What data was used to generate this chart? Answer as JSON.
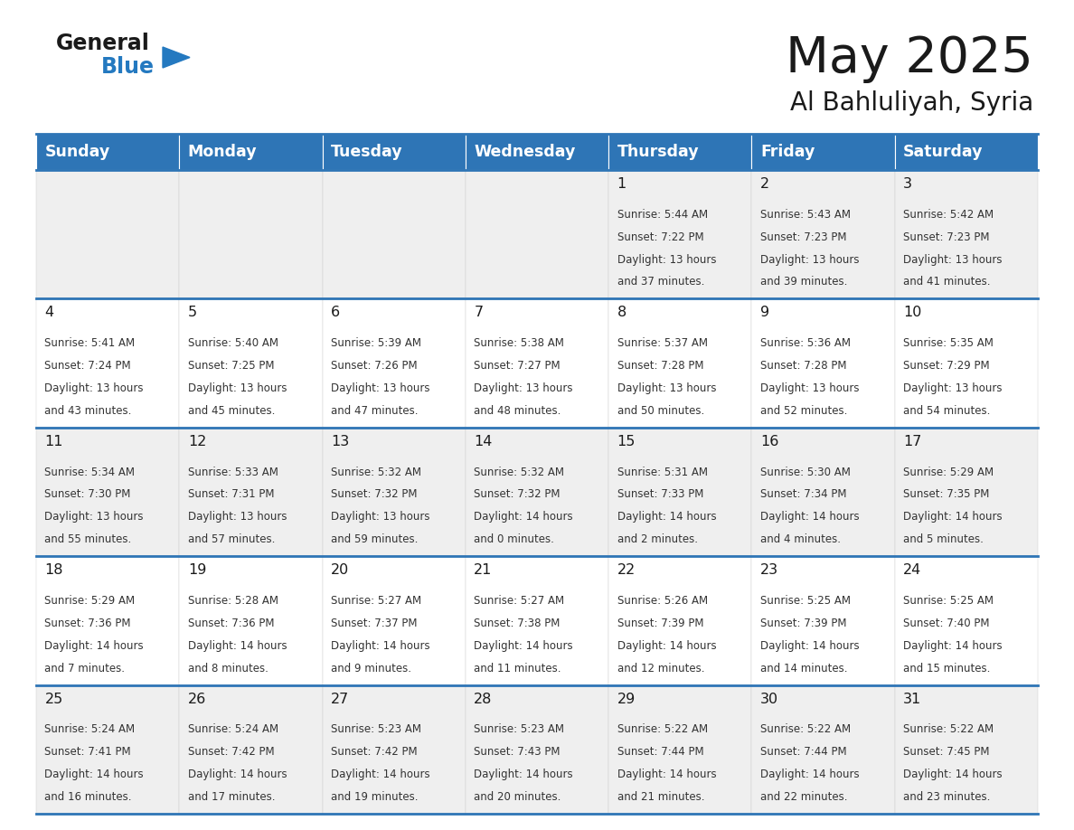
{
  "title": "May 2025",
  "subtitle": "Al Bahluliyah, Syria",
  "header_bg": "#2E75B6",
  "header_text_color": "#FFFFFF",
  "weekdays": [
    "Sunday",
    "Monday",
    "Tuesday",
    "Wednesday",
    "Thursday",
    "Friday",
    "Saturday"
  ],
  "row_bg_odd": "#EFEFEF",
  "row_bg_even": "#FFFFFF",
  "separator_color": "#2E75B6",
  "cell_border_color": "#CCCCCC",
  "day_number_color": "#1A1A1A",
  "text_color": "#333333",
  "calendar": [
    [
      {
        "day": "",
        "sunrise": "",
        "sunset": "",
        "daylight_h": "",
        "daylight_m": ""
      },
      {
        "day": "",
        "sunrise": "",
        "sunset": "",
        "daylight_h": "",
        "daylight_m": ""
      },
      {
        "day": "",
        "sunrise": "",
        "sunset": "",
        "daylight_h": "",
        "daylight_m": ""
      },
      {
        "day": "",
        "sunrise": "",
        "sunset": "",
        "daylight_h": "",
        "daylight_m": ""
      },
      {
        "day": "1",
        "sunrise": "5:44 AM",
        "sunset": "7:22 PM",
        "daylight_h": "13 hours",
        "daylight_m": "and 37 minutes."
      },
      {
        "day": "2",
        "sunrise": "5:43 AM",
        "sunset": "7:23 PM",
        "daylight_h": "13 hours",
        "daylight_m": "and 39 minutes."
      },
      {
        "day": "3",
        "sunrise": "5:42 AM",
        "sunset": "7:23 PM",
        "daylight_h": "13 hours",
        "daylight_m": "and 41 minutes."
      }
    ],
    [
      {
        "day": "4",
        "sunrise": "5:41 AM",
        "sunset": "7:24 PM",
        "daylight_h": "13 hours",
        "daylight_m": "and 43 minutes."
      },
      {
        "day": "5",
        "sunrise": "5:40 AM",
        "sunset": "7:25 PM",
        "daylight_h": "13 hours",
        "daylight_m": "and 45 minutes."
      },
      {
        "day": "6",
        "sunrise": "5:39 AM",
        "sunset": "7:26 PM",
        "daylight_h": "13 hours",
        "daylight_m": "and 47 minutes."
      },
      {
        "day": "7",
        "sunrise": "5:38 AM",
        "sunset": "7:27 PM",
        "daylight_h": "13 hours",
        "daylight_m": "and 48 minutes."
      },
      {
        "day": "8",
        "sunrise": "5:37 AM",
        "sunset": "7:28 PM",
        "daylight_h": "13 hours",
        "daylight_m": "and 50 minutes."
      },
      {
        "day": "9",
        "sunrise": "5:36 AM",
        "sunset": "7:28 PM",
        "daylight_h": "13 hours",
        "daylight_m": "and 52 minutes."
      },
      {
        "day": "10",
        "sunrise": "5:35 AM",
        "sunset": "7:29 PM",
        "daylight_h": "13 hours",
        "daylight_m": "and 54 minutes."
      }
    ],
    [
      {
        "day": "11",
        "sunrise": "5:34 AM",
        "sunset": "7:30 PM",
        "daylight_h": "13 hours",
        "daylight_m": "and 55 minutes."
      },
      {
        "day": "12",
        "sunrise": "5:33 AM",
        "sunset": "7:31 PM",
        "daylight_h": "13 hours",
        "daylight_m": "and 57 minutes."
      },
      {
        "day": "13",
        "sunrise": "5:32 AM",
        "sunset": "7:32 PM",
        "daylight_h": "13 hours",
        "daylight_m": "and 59 minutes."
      },
      {
        "day": "14",
        "sunrise": "5:32 AM",
        "sunset": "7:32 PM",
        "daylight_h": "14 hours",
        "daylight_m": "and 0 minutes."
      },
      {
        "day": "15",
        "sunrise": "5:31 AM",
        "sunset": "7:33 PM",
        "daylight_h": "14 hours",
        "daylight_m": "and 2 minutes."
      },
      {
        "day": "16",
        "sunrise": "5:30 AM",
        "sunset": "7:34 PM",
        "daylight_h": "14 hours",
        "daylight_m": "and 4 minutes."
      },
      {
        "day": "17",
        "sunrise": "5:29 AM",
        "sunset": "7:35 PM",
        "daylight_h": "14 hours",
        "daylight_m": "and 5 minutes."
      }
    ],
    [
      {
        "day": "18",
        "sunrise": "5:29 AM",
        "sunset": "7:36 PM",
        "daylight_h": "14 hours",
        "daylight_m": "and 7 minutes."
      },
      {
        "day": "19",
        "sunrise": "5:28 AM",
        "sunset": "7:36 PM",
        "daylight_h": "14 hours",
        "daylight_m": "and 8 minutes."
      },
      {
        "day": "20",
        "sunrise": "5:27 AM",
        "sunset": "7:37 PM",
        "daylight_h": "14 hours",
        "daylight_m": "and 9 minutes."
      },
      {
        "day": "21",
        "sunrise": "5:27 AM",
        "sunset": "7:38 PM",
        "daylight_h": "14 hours",
        "daylight_m": "and 11 minutes."
      },
      {
        "day": "22",
        "sunrise": "5:26 AM",
        "sunset": "7:39 PM",
        "daylight_h": "14 hours",
        "daylight_m": "and 12 minutes."
      },
      {
        "day": "23",
        "sunrise": "5:25 AM",
        "sunset": "7:39 PM",
        "daylight_h": "14 hours",
        "daylight_m": "and 14 minutes."
      },
      {
        "day": "24",
        "sunrise": "5:25 AM",
        "sunset": "7:40 PM",
        "daylight_h": "14 hours",
        "daylight_m": "and 15 minutes."
      }
    ],
    [
      {
        "day": "25",
        "sunrise": "5:24 AM",
        "sunset": "7:41 PM",
        "daylight_h": "14 hours",
        "daylight_m": "and 16 minutes."
      },
      {
        "day": "26",
        "sunrise": "5:24 AM",
        "sunset": "7:42 PM",
        "daylight_h": "14 hours",
        "daylight_m": "and 17 minutes."
      },
      {
        "day": "27",
        "sunrise": "5:23 AM",
        "sunset": "7:42 PM",
        "daylight_h": "14 hours",
        "daylight_m": "and 19 minutes."
      },
      {
        "day": "28",
        "sunrise": "5:23 AM",
        "sunset": "7:43 PM",
        "daylight_h": "14 hours",
        "daylight_m": "and 20 minutes."
      },
      {
        "day": "29",
        "sunrise": "5:22 AM",
        "sunset": "7:44 PM",
        "daylight_h": "14 hours",
        "daylight_m": "and 21 minutes."
      },
      {
        "day": "30",
        "sunrise": "5:22 AM",
        "sunset": "7:44 PM",
        "daylight_h": "14 hours",
        "daylight_m": "and 22 minutes."
      },
      {
        "day": "31",
        "sunrise": "5:22 AM",
        "sunset": "7:45 PM",
        "daylight_h": "14 hours",
        "daylight_m": "and 23 minutes."
      }
    ]
  ],
  "logo_general_color": "#1A1A1A",
  "logo_blue_color": "#2479C0",
  "logo_triangle_color": "#2479C0",
  "title_color": "#1A1A1A",
  "subtitle_color": "#1A1A1A"
}
